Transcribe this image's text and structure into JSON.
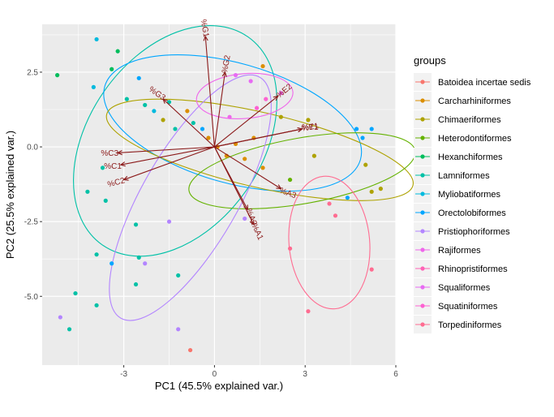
{
  "chart_data": {
    "type": "scatter",
    "subtype": "pca-biplot",
    "xlabel": "PC1 (45.5% explained var.)",
    "ylabel": "PC2 (25.5% explained var.)",
    "xlim": [
      -5.7,
      6.0
    ],
    "ylim": [
      -7.3,
      4.1
    ],
    "xticks": [
      -3,
      0,
      3,
      6
    ],
    "xtick_labels": [
      "-3",
      "0",
      "3",
      "6"
    ],
    "yticks": [
      -5.0,
      -2.5,
      0.0,
      2.5
    ],
    "ytick_labels": [
      "-5.0",
      "-2.5",
      "0.0",
      "2.5"
    ],
    "grid": true,
    "legend": {
      "title": "groups",
      "position": "right",
      "entries": [
        {
          "name": "Batoidea incertae sedis",
          "color": "#F8766D"
        },
        {
          "name": "Carcharhiniformes",
          "color": "#DB8E00"
        },
        {
          "name": "Chimaeriformes",
          "color": "#AEA200"
        },
        {
          "name": "Heterodontiformes",
          "color": "#64B200"
        },
        {
          "name": "Hexanchiformes",
          "color": "#00BD5C"
        },
        {
          "name": "Lamniformes",
          "color": "#00C1A7"
        },
        {
          "name": "Myliobatiformes",
          "color": "#00BADE"
        },
        {
          "name": "Orectolobiformes",
          "color": "#00A6FF"
        },
        {
          "name": "Pristiophoriformes",
          "color": "#B385FF"
        },
        {
          "name": "Rajiformes",
          "color": "#EF67EB"
        },
        {
          "name": "Rhinopristiformes",
          "color": "#FF63B6"
        },
        {
          "name": "Squaliformes",
          "color": "#E76BF3"
        },
        {
          "name": "Squatiniformes",
          "color": "#FD61D1"
        },
        {
          "name": "Torpediniformes",
          "color": "#FF6C91"
        }
      ]
    },
    "loadings": [
      {
        "label": "%G1",
        "x": -0.3,
        "y": 3.7,
        "angle": 80
      },
      {
        "label": "%G2",
        "x": 0.35,
        "y": 2.5,
        "angle": -80
      },
      {
        "label": "%G3",
        "x": -1.7,
        "y": 1.6,
        "angle": 35
      },
      {
        "label": "%E2",
        "x": 2.1,
        "y": 1.7,
        "angle": -40
      },
      {
        "label": "%E1",
        "x": 2.9,
        "y": 0.6,
        "angle": -10
      },
      {
        "label": "%T1",
        "x": 2.9,
        "y": 0.6,
        "angle": 0
      },
      {
        "label": "%C3",
        "x": -3.2,
        "y": -0.2,
        "angle": 0
      },
      {
        "label": "%C1",
        "x": -3.1,
        "y": -0.6,
        "angle": 0
      },
      {
        "label": "%C2",
        "x": -3.0,
        "y": -1.1,
        "angle": -15
      },
      {
        "label": "%A3",
        "x": 2.2,
        "y": -1.4,
        "angle": 20
      },
      {
        "label": "%A2",
        "x": 1.1,
        "y": -2.1,
        "angle": 70
      },
      {
        "label": "%A1",
        "x": 1.3,
        "y": -2.6,
        "angle": 65
      }
    ],
    "ellipses": [
      {
        "group": "Lamniformes",
        "cx": -1.3,
        "cy": 0.2,
        "rx": 4.2,
        "ry": 2.9,
        "angle": 55
      },
      {
        "group": "Orectolobiformes",
        "cx": 0.6,
        "cy": 0.8,
        "rx": 4.4,
        "ry": 2.0,
        "angle": -16
      },
      {
        "group": "Chimaeriformes",
        "cx": 1.5,
        "cy": -0.1,
        "rx": 5.2,
        "ry": 1.25,
        "angle": -13
      },
      {
        "group": "Heterodontiformes",
        "cx": 2.9,
        "cy": -0.8,
        "rx": 3.8,
        "ry": 1.1,
        "angle": 10
      },
      {
        "group": "Pristiophoriformes",
        "cx": -0.8,
        "cy": -1.7,
        "rx": 4.6,
        "ry": 1.6,
        "angle": 60
      },
      {
        "group": "Rajiformes",
        "cx": 1.0,
        "cy": 1.7,
        "rx": 1.6,
        "ry": 0.75,
        "angle": 5
      },
      {
        "group": "Torpediniformes",
        "cx": 3.8,
        "cy": -3.2,
        "rx": 2.2,
        "ry": 1.35,
        "angle": 95
      }
    ],
    "points": [
      {
        "x": -5.2,
        "y": 2.4,
        "group": "Hexanchiformes"
      },
      {
        "x": -3.9,
        "y": 3.6,
        "group": "Myliobatiformes"
      },
      {
        "x": -3.4,
        "y": 2.6,
        "group": "Hexanchiformes"
      },
      {
        "x": -3.2,
        "y": 3.2,
        "group": "Hexanchiformes"
      },
      {
        "x": -4.0,
        "y": 2.0,
        "group": "Myliobatiformes"
      },
      {
        "x": -2.9,
        "y": 1.6,
        "group": "Lamniformes"
      },
      {
        "x": -2.5,
        "y": 2.3,
        "group": "Orectolobiformes"
      },
      {
        "x": -2.3,
        "y": 1.4,
        "group": "Lamniformes"
      },
      {
        "x": -2.0,
        "y": 1.2,
        "group": "Myliobatiformes"
      },
      {
        "x": -1.7,
        "y": 0.9,
        "group": "Chimaeriformes"
      },
      {
        "x": -1.5,
        "y": 1.5,
        "group": "Lamniformes"
      },
      {
        "x": -1.3,
        "y": 0.6,
        "group": "Lamniformes"
      },
      {
        "x": -0.9,
        "y": 1.2,
        "group": "Carcharhiniformes"
      },
      {
        "x": -0.7,
        "y": 0.8,
        "group": "Lamniformes"
      },
      {
        "x": -0.4,
        "y": 0.6,
        "group": "Orectolobiformes"
      },
      {
        "x": -0.2,
        "y": 0.3,
        "group": "Carcharhiniformes"
      },
      {
        "x": 0.1,
        "y": 0.0,
        "group": "Carcharhiniformes"
      },
      {
        "x": 0.4,
        "y": -0.3,
        "group": "Carcharhiniformes"
      },
      {
        "x": 0.7,
        "y": 0.1,
        "group": "Carcharhiniformes"
      },
      {
        "x": 1.0,
        "y": -0.4,
        "group": "Carcharhiniformes"
      },
      {
        "x": 1.3,
        "y": 0.3,
        "group": "Carcharhiniformes"
      },
      {
        "x": 1.6,
        "y": -0.7,
        "group": "Carcharhiniformes"
      },
      {
        "x": 1.6,
        "y": 2.7,
        "group": "Carcharhiniformes"
      },
      {
        "x": 2.2,
        "y": 1.0,
        "group": "Chimaeriformes"
      },
      {
        "x": 2.5,
        "y": -1.1,
        "group": "Heterodontiformes"
      },
      {
        "x": 3.1,
        "y": 0.9,
        "group": "Chimaeriformes"
      },
      {
        "x": 3.3,
        "y": -0.3,
        "group": "Chimaeriformes"
      },
      {
        "x": 4.7,
        "y": 0.6,
        "group": "Orectolobiformes"
      },
      {
        "x": 4.9,
        "y": 0.3,
        "group": "Orectolobiformes"
      },
      {
        "x": 5.2,
        "y": 0.6,
        "group": "Orectolobiformes"
      },
      {
        "x": 5.0,
        "y": -0.6,
        "group": "Chimaeriformes"
      },
      {
        "x": 5.5,
        "y": -1.4,
        "group": "Chimaeriformes"
      },
      {
        "x": 5.2,
        "y": -1.5,
        "group": "Chimaeriformes"
      },
      {
        "x": 4.4,
        "y": -1.7,
        "group": "Orectolobiformes"
      },
      {
        "x": -4.2,
        "y": -1.5,
        "group": "Lamniformes"
      },
      {
        "x": -3.7,
        "y": -0.7,
        "group": "Lamniformes"
      },
      {
        "x": -3.6,
        "y": -1.8,
        "group": "Lamniformes"
      },
      {
        "x": -2.6,
        "y": -2.6,
        "group": "Lamniformes"
      },
      {
        "x": -2.5,
        "y": -3.7,
        "group": "Lamniformes"
      },
      {
        "x": -3.9,
        "y": -3.6,
        "group": "Lamniformes"
      },
      {
        "x": -2.6,
        "y": -4.6,
        "group": "Lamniformes"
      },
      {
        "x": -4.6,
        "y": -4.9,
        "group": "Lamniformes"
      },
      {
        "x": -3.9,
        "y": -5.3,
        "group": "Lamniformes"
      },
      {
        "x": -4.8,
        "y": -6.1,
        "group": "Lamniformes"
      },
      {
        "x": -3.4,
        "y": -3.9,
        "group": "Orectolobiformes"
      },
      {
        "x": -1.2,
        "y": -4.3,
        "group": "Lamniformes"
      },
      {
        "x": -2.3,
        "y": -3.9,
        "group": "Pristiophoriformes"
      },
      {
        "x": -1.5,
        "y": -2.5,
        "group": "Pristiophoriformes"
      },
      {
        "x": -5.1,
        "y": -5.7,
        "group": "Pristiophoriformes"
      },
      {
        "x": -1.2,
        "y": -6.1,
        "group": "Pristiophoriformes"
      },
      {
        "x": -0.8,
        "y": -6.8,
        "group": "Batoidea incertae sedis"
      },
      {
        "x": 1.0,
        "y": -2.4,
        "group": "Pristiophoriformes"
      },
      {
        "x": 3.8,
        "y": -1.9,
        "group": "Torpediniformes"
      },
      {
        "x": 4.0,
        "y": -2.3,
        "group": "Torpediniformes"
      },
      {
        "x": 2.5,
        "y": -3.4,
        "group": "Torpediniformes"
      },
      {
        "x": 5.2,
        "y": -4.1,
        "group": "Torpediniformes"
      },
      {
        "x": 3.1,
        "y": -5.5,
        "group": "Torpediniformes"
      },
      {
        "x": 0.7,
        "y": 2.4,
        "group": "Squaliformes"
      },
      {
        "x": 1.2,
        "y": 2.2,
        "group": "Squaliformes"
      },
      {
        "x": 1.7,
        "y": 1.6,
        "group": "Squatiniformes"
      },
      {
        "x": 2.2,
        "y": 1.8,
        "group": "Squaliformes"
      },
      {
        "x": 0.5,
        "y": 1.0,
        "group": "Rajiformes"
      },
      {
        "x": 1.4,
        "y": 1.3,
        "group": "Squatiniformes"
      }
    ]
  }
}
